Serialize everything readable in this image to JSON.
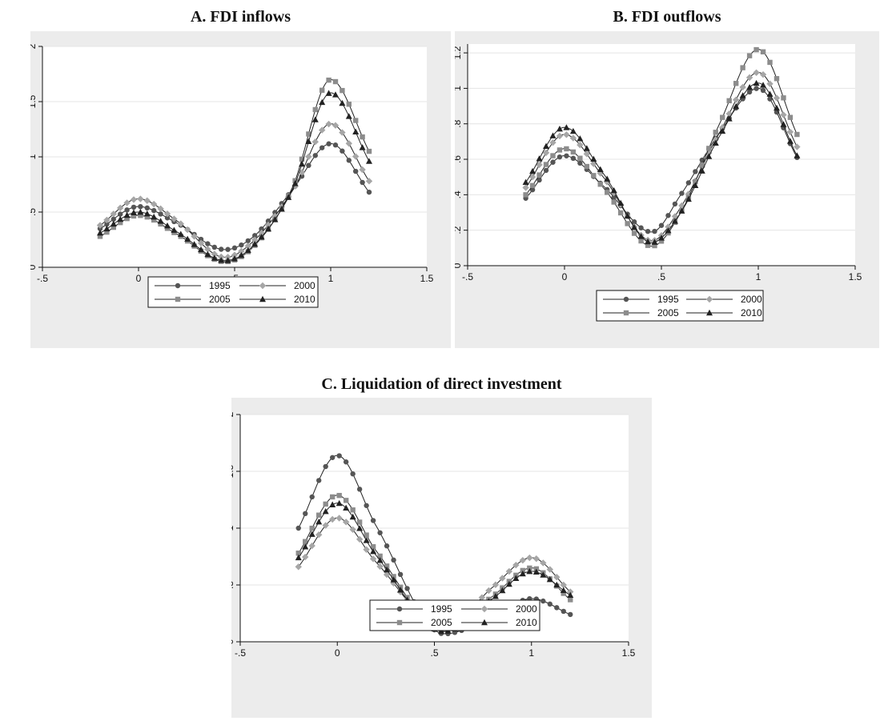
{
  "chart_data": [
    {
      "type": "line",
      "title": "A. FDI inflows",
      "xlabel": "",
      "ylabel": "",
      "xlim": [
        -0.5,
        1.5
      ],
      "ylim": [
        0,
        2
      ],
      "xticks": [
        "-.5",
        "0",
        ".5",
        "1",
        "1.5"
      ],
      "yticks": [
        "0",
        ".5",
        "1",
        "1.5",
        "2"
      ],
      "ytick_values": [
        0,
        0.5,
        1,
        1.5,
        2
      ],
      "grid": true,
      "legend_position": "bottom",
      "x": [
        -0.2,
        0.0,
        0.2,
        0.45,
        0.6,
        0.8,
        1.0,
        1.2
      ],
      "series": [
        {
          "name": "1995",
          "color": "#555555",
          "marker": "circle",
          "values": [
            0.35,
            0.55,
            0.4,
            0.16,
            0.28,
            0.7,
            1.12,
            0.68
          ]
        },
        {
          "name": "2000",
          "color": "#a6a6a6",
          "marker": "diamond",
          "values": [
            0.38,
            0.62,
            0.42,
            0.09,
            0.24,
            0.69,
            1.3,
            0.78
          ]
        },
        {
          "name": "2005",
          "color": "#8c8c8c",
          "marker": "square",
          "values": [
            0.28,
            0.47,
            0.3,
            0.05,
            0.19,
            0.72,
            1.7,
            1.05
          ]
        },
        {
          "name": "2010",
          "color": "#222222",
          "marker": "triangle",
          "values": [
            0.31,
            0.5,
            0.32,
            0.06,
            0.2,
            0.7,
            1.58,
            0.96
          ]
        }
      ]
    },
    {
      "type": "line",
      "title": "B. FDI outflows",
      "xlabel": "",
      "ylabel": "",
      "xlim": [
        -0.5,
        1.5
      ],
      "ylim": [
        0,
        1.25
      ],
      "xticks": [
        "-.5",
        "0",
        ".5",
        "1",
        "1.5"
      ],
      "yticks": [
        "0",
        ".2",
        ".4",
        ".6",
        ".8",
        "1",
        "1.2"
      ],
      "ytick_values": [
        0,
        0.2,
        0.4,
        0.6,
        0.8,
        1.0,
        1.2
      ],
      "grid": true,
      "legend_position": "bottom",
      "x": [
        -0.2,
        0.0,
        0.2,
        0.45,
        0.6,
        0.8,
        1.0,
        1.2
      ],
      "series": [
        {
          "name": "1995",
          "color": "#555555",
          "marker": "circle",
          "values": [
            0.38,
            0.62,
            0.45,
            0.19,
            0.4,
            0.75,
            1.0,
            0.61
          ]
        },
        {
          "name": "2000",
          "color": "#a6a6a6",
          "marker": "diamond",
          "values": [
            0.44,
            0.74,
            0.5,
            0.14,
            0.33,
            0.75,
            1.09,
            0.67
          ]
        },
        {
          "name": "2005",
          "color": "#8c8c8c",
          "marker": "square",
          "values": [
            0.4,
            0.66,
            0.44,
            0.11,
            0.3,
            0.8,
            1.22,
            0.74
          ]
        },
        {
          "name": "2010",
          "color": "#222222",
          "marker": "triangle",
          "values": [
            0.47,
            0.78,
            0.52,
            0.13,
            0.3,
            0.73,
            1.03,
            0.62
          ]
        }
      ]
    },
    {
      "type": "line",
      "title": "C. Liquidation of direct investment",
      "xlabel": "",
      "ylabel": "",
      "xlim": [
        -0.5,
        1.5
      ],
      "ylim": [
        0,
        2
      ],
      "xticks": [
        "-.5",
        "0",
        ".5",
        "1",
        "1.5"
      ],
      "yticks": [
        "0",
        ".5",
        "1",
        "1.5",
        "2"
      ],
      "ytick_values": [
        0,
        0.5,
        1,
        1.5,
        2
      ],
      "grid": true,
      "legend_position": "bottom",
      "x": [
        -0.2,
        0.0,
        0.2,
        0.55,
        0.8,
        1.0,
        1.2
      ],
      "series": [
        {
          "name": "1995",
          "color": "#555555",
          "marker": "circle",
          "values": [
            1.0,
            1.64,
            1.02,
            0.07,
            0.22,
            0.38,
            0.24
          ]
        },
        {
          "name": "2000",
          "color": "#a6a6a6",
          "marker": "diamond",
          "values": [
            0.66,
            1.09,
            0.7,
            0.12,
            0.48,
            0.74,
            0.44
          ]
        },
        {
          "name": "2005",
          "color": "#8c8c8c",
          "marker": "square",
          "values": [
            0.78,
            1.29,
            0.8,
            0.1,
            0.4,
            0.65,
            0.37
          ]
        },
        {
          "name": "2010",
          "color": "#222222",
          "marker": "triangle",
          "values": [
            0.74,
            1.22,
            0.76,
            0.09,
            0.38,
            0.62,
            0.41
          ]
        }
      ]
    }
  ]
}
